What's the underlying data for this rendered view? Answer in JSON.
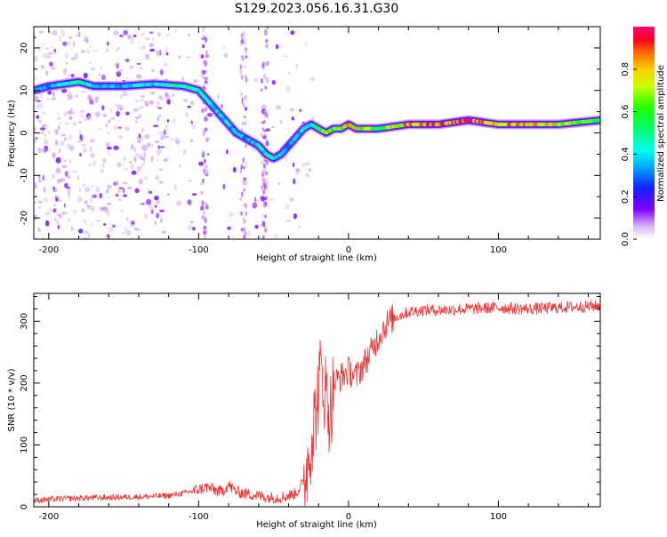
{
  "title": "S129.2023.056.16.31.G30",
  "colors": {
    "spectrum_low": "#ddc6f2",
    "snr_line": "#ee3333"
  },
  "chart_data": [
    {
      "type": "heatmap",
      "xlabel": "Height of straight line (km)",
      "ylabel": "Frequency (Hz)",
      "xlim": [
        -210,
        168
      ],
      "ylim": [
        -25,
        25
      ],
      "x_ticks": [
        -200,
        -100,
        0,
        100
      ],
      "y_ticks": [
        -20,
        -10,
        0,
        10,
        20
      ],
      "colorbar": {
        "label": "Normalized spectral amplitude",
        "range": [
          0,
          1
        ],
        "ticks": [
          "0.0",
          "0.2",
          "0.4",
          "0.6",
          "0.8"
        ]
      },
      "ridge": {
        "x": [
          -210,
          -200,
          -190,
          -180,
          -170,
          -150,
          -130,
          -110,
          -100,
          -95,
          -90,
          -85,
          -80,
          -75,
          -70,
          -65,
          -60,
          -55,
          -50,
          -45,
          -40,
          -35,
          -30,
          -25,
          -20,
          -15,
          -10,
          -5,
          0,
          5,
          10,
          20,
          40,
          60,
          80,
          100,
          120,
          140,
          168
        ],
        "y": [
          10,
          11,
          11.5,
          12,
          11,
          11,
          11.5,
          11,
          10,
          8,
          6,
          4,
          2,
          0,
          -1,
          -2,
          -3,
          -5,
          -6,
          -5,
          -3,
          -1,
          1,
          2,
          1,
          0,
          1,
          1,
          2,
          1,
          1,
          1,
          2,
          2,
          3,
          2,
          2,
          2,
          3
        ],
        "amplitude": [
          0.3,
          0.35,
          0.4,
          0.5,
          0.35,
          0.35,
          0.4,
          0.5,
          0.45,
          0.45,
          0.4,
          0.4,
          0.4,
          0.35,
          0.35,
          0.35,
          0.4,
          0.45,
          0.45,
          0.4,
          0.35,
          0.35,
          0.4,
          0.45,
          0.55,
          0.7,
          0.6,
          0.7,
          0.8,
          0.75,
          0.7,
          0.6,
          0.85,
          0.95,
          0.9,
          0.8,
          0.85,
          0.75,
          0.6
        ]
      }
    },
    {
      "type": "line",
      "xlabel": "Height of straight line (km)",
      "ylabel": "SNR (10 * v/v)",
      "xlim": [
        -210,
        168
      ],
      "ylim": [
        0,
        345
      ],
      "x_ticks": [
        -200,
        -100,
        0,
        100
      ],
      "y_ticks": [
        0,
        100,
        200,
        300
      ],
      "series": [
        {
          "x": [
            -210,
            -200,
            -180,
            -160,
            -140,
            -120,
            -110,
            -100,
            -95,
            -90,
            -85,
            -80,
            -75,
            -70,
            -65,
            -60,
            -55,
            -50,
            -45,
            -40,
            -35,
            -30,
            -28,
            -25,
            -22,
            -20,
            -18,
            -15,
            -12,
            -10,
            -5,
            0,
            5,
            10,
            15,
            20,
            25,
            30,
            40,
            50,
            60,
            80,
            100,
            120,
            140,
            168
          ],
          "y": [
            10,
            12,
            14,
            15,
            16,
            18,
            22,
            28,
            32,
            28,
            24,
            35,
            25,
            22,
            20,
            18,
            16,
            15,
            15,
            18,
            22,
            40,
            60,
            110,
            150,
            190,
            220,
            180,
            150,
            200,
            210,
            220,
            210,
            230,
            250,
            275,
            295,
            305,
            315,
            318,
            318,
            320,
            322,
            320,
            322,
            325
          ]
        }
      ]
    }
  ]
}
